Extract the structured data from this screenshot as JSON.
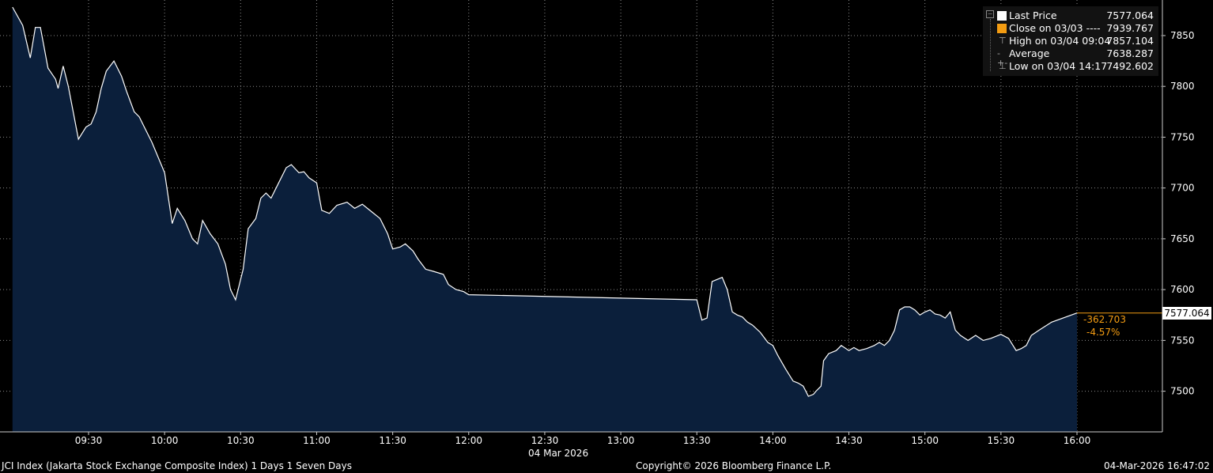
{
  "chart_data": {
    "type": "area",
    "title": "JCI Index (Jakarta Stock Exchange Composite Index) 1 Days 1 Seven Days",
    "xlabel": "04 Mar 2026",
    "ylabel": "",
    "x_ticks": [
      "09:30",
      "10:00",
      "10:30",
      "11:00",
      "11:30",
      "12:00",
      "12:30",
      "13:00",
      "13:30",
      "14:00",
      "14:30",
      "15:00",
      "15:30",
      "16:00"
    ],
    "y_ticks": [
      7500,
      7550,
      7600,
      7650,
      7700,
      7750,
      7800,
      7850
    ],
    "ylim": [
      7460,
      7885
    ],
    "xlim": [
      "09:00",
      "16:40"
    ],
    "grid": true,
    "legend_position": "top-right",
    "series": [
      {
        "name": "Last Price",
        "x": [
          "09:00",
          "09:04",
          "09:07",
          "09:09",
          "09:11",
          "09:14",
          "09:17",
          "09:18",
          "09:20",
          "09:22",
          "09:26",
          "09:29",
          "09:31",
          "09:33",
          "09:35",
          "09:37",
          "09:40",
          "09:43",
          "09:45",
          "09:48",
          "09:50",
          "09:52",
          "09:55",
          "10:00",
          "10:03",
          "10:05",
          "10:08",
          "10:11",
          "10:13",
          "10:15",
          "10:18",
          "10:21",
          "10:24",
          "10:26",
          "10:28",
          "10:31",
          "10:33",
          "10:36",
          "10:38",
          "10:40",
          "10:42",
          "10:45",
          "10:48",
          "10:50",
          "10:53",
          "10:55",
          "10:57",
          "11:00",
          "11:02",
          "11:05",
          "11:08",
          "11:12",
          "11:15",
          "11:18",
          "11:20",
          "11:22",
          "11:25",
          "11:28",
          "11:30",
          "11:33",
          "11:35",
          "11:38",
          "11:40",
          "11:43",
          "11:46",
          "11:50",
          "11:52",
          "11:55",
          "11:58",
          "12:00",
          "13:30",
          "13:32",
          "13:34",
          "13:36",
          "13:38",
          "13:40",
          "13:42",
          "13:44",
          "13:46",
          "13:48",
          "13:50",
          "13:52",
          "13:55",
          "13:58",
          "14:00",
          "14:02",
          "14:05",
          "14:08",
          "14:10",
          "14:12",
          "14:14",
          "14:16",
          "14:17",
          "14:19",
          "14:20",
          "14:22",
          "14:25",
          "14:27",
          "14:30",
          "14:32",
          "14:34",
          "14:37",
          "14:40",
          "14:42",
          "14:44",
          "14:46",
          "14:48",
          "14:50",
          "14:52",
          "14:54",
          "14:56",
          "14:58",
          "15:00",
          "15:02",
          "15:04",
          "15:06",
          "15:08",
          "15:10",
          "15:12",
          "15:14",
          "15:17",
          "15:20",
          "15:23",
          "15:26",
          "15:30",
          "15:33",
          "15:36",
          "15:38",
          "15:40",
          "15:42",
          "15:45",
          "15:50",
          "16:00"
        ],
        "y": [
          7878,
          7860,
          7828,
          7858,
          7858,
          7818,
          7807,
          7798,
          7820,
          7800,
          7748,
          7760,
          7763,
          7775,
          7798,
          7815,
          7825,
          7810,
          7795,
          7775,
          7770,
          7760,
          7745,
          7715,
          7665,
          7680,
          7668,
          7650,
          7645,
          7668,
          7655,
          7645,
          7625,
          7600,
          7590,
          7620,
          7660,
          7670,
          7690,
          7695,
          7690,
          7705,
          7720,
          7723,
          7715,
          7716,
          7710,
          7705,
          7678,
          7675,
          7683,
          7686,
          7680,
          7684,
          7680,
          7676,
          7670,
          7655,
          7640,
          7642,
          7645,
          7638,
          7630,
          7620,
          7618,
          7615,
          7605,
          7600,
          7598,
          7595,
          7590,
          7570,
          7572,
          7608,
          7610,
          7612,
          7600,
          7578,
          7575,
          7573,
          7568,
          7565,
          7558,
          7548,
          7545,
          7535,
          7522,
          7510,
          7508,
          7505,
          7495,
          7497,
          7500,
          7505,
          7530,
          7537,
          7540,
          7545,
          7540,
          7543,
          7540,
          7542,
          7545,
          7548,
          7545,
          7550,
          7560,
          7580,
          7583,
          7583,
          7580,
          7575,
          7578,
          7580,
          7576,
          7575,
          7572,
          7578,
          7560,
          7555,
          7550,
          7555,
          7550,
          7552,
          7556,
          7552,
          7540,
          7542,
          7545,
          7555,
          7560,
          7568,
          7577
        ]
      },
      {
        "name": "Close on 03/03",
        "value": 7939.767,
        "style": "----"
      },
      {
        "name": "High on 03/04 09:04",
        "value": 7857.104
      },
      {
        "name": "Average",
        "value": 7638.287
      },
      {
        "name": "Low on 03/04 14:17",
        "value": 7492.602
      }
    ],
    "last_price_tag": "7577.064",
    "change": "-362.703",
    "change_pct": "-4.57%"
  },
  "legend": {
    "rows": [
      {
        "icon": "white-square-icon",
        "label": "Last Price",
        "value": "7577.064",
        "color": "#ffffff"
      },
      {
        "icon": "orange-square-icon",
        "label": "Close on 03/03 ----",
        "value": "7939.767",
        "color": "#f39c12"
      },
      {
        "icon": "high-marker-icon",
        "label": "High on 03/04 09:04",
        "value": "7857.104",
        "color": "#aaaaaa"
      },
      {
        "icon": "average-marker-icon",
        "label": "Average",
        "value": "7638.287",
        "color": "#aaaaaa"
      },
      {
        "icon": "low-marker-icon",
        "label": "Low on 03/04 14:17",
        "value": "7492.602",
        "color": "#aaaaaa"
      }
    ]
  },
  "footer": {
    "left": "JCI Index (Jakarta Stock Exchange Composite Index) 1 Days 1 Seven Days",
    "center": "Copyright© 2026 Bloomberg Finance L.P.",
    "right": "04-Mar-2026 16:47:02"
  },
  "colors": {
    "background": "#000000",
    "area_fill": "#0b1f3b",
    "line": "#ffffff",
    "accent_orange": "#f39c12",
    "grid": "#8a8a8a"
  }
}
